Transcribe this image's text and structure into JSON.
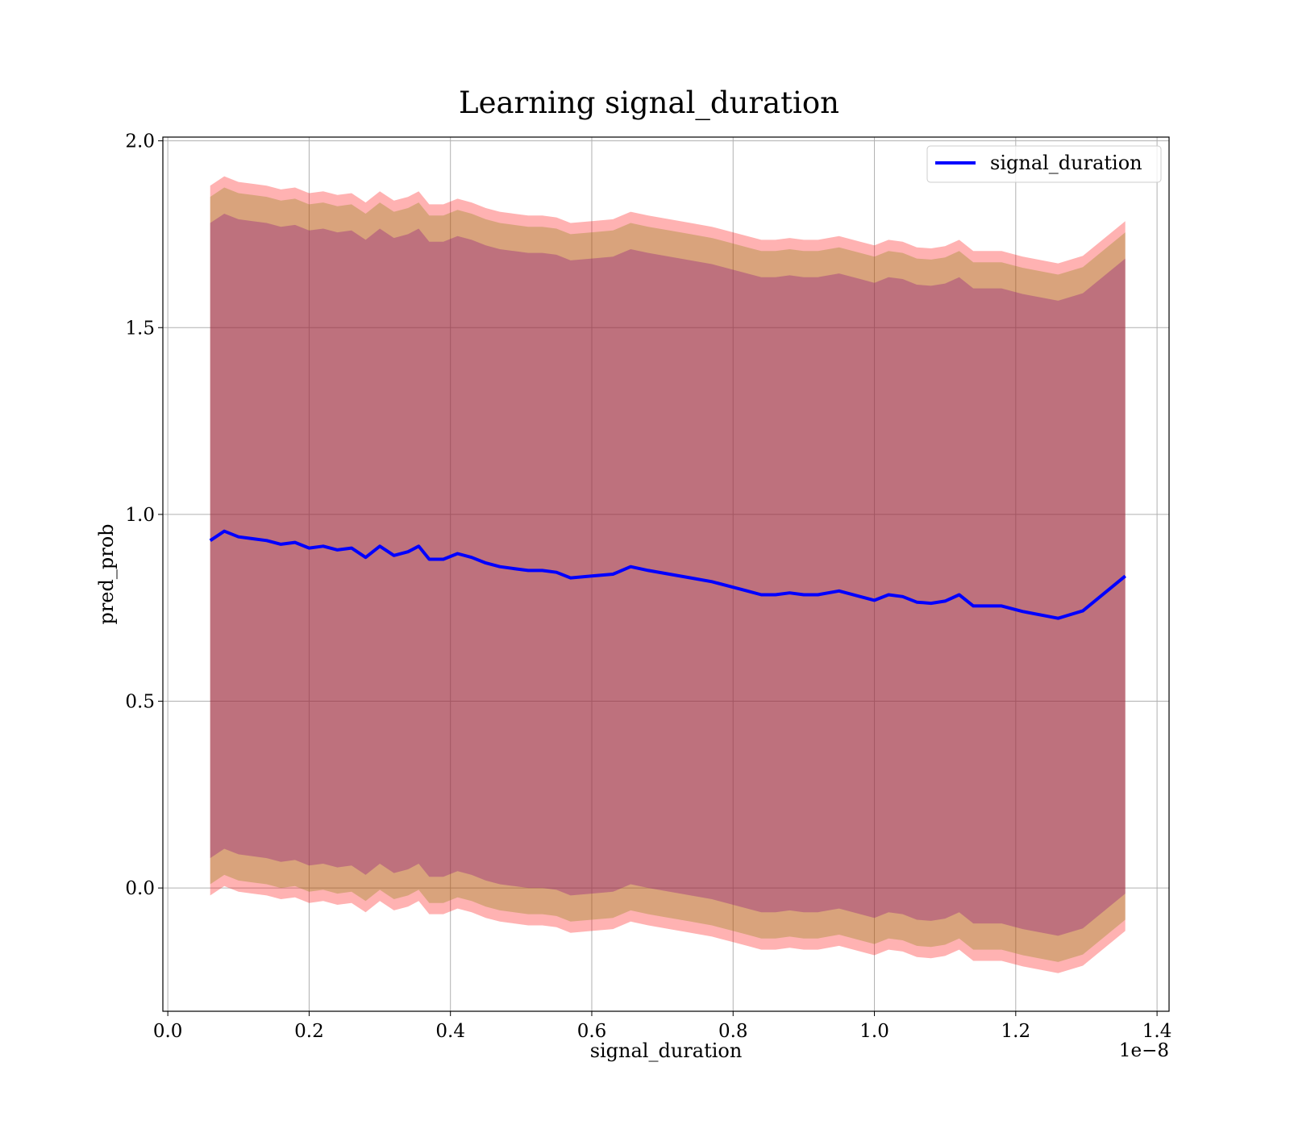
{
  "chart_data": {
    "type": "line",
    "title": "Learning signal_duration",
    "xlabel": "signal_duration",
    "ylabel": "pred_prob",
    "x_offset_text": "1e−8",
    "xlim": [
      -0.007,
      1.417
    ],
    "ylim": [
      -0.33,
      2.01
    ],
    "x_ticks": [
      "0.0",
      "0.2",
      "0.4",
      "0.6",
      "0.8",
      "1.0",
      "1.2",
      "1.4"
    ],
    "x_tick_values": [
      0.0,
      0.2,
      0.4,
      0.6,
      0.8,
      1.0,
      1.2,
      1.4
    ],
    "y_ticks": [
      "0.0",
      "0.5",
      "1.0",
      "1.5",
      "2.0"
    ],
    "y_tick_values": [
      0.0,
      0.5,
      1.0,
      1.5,
      2.0
    ],
    "grid": true,
    "legend_position": "top-right",
    "x": [
      0.06,
      0.08,
      0.1,
      0.12,
      0.14,
      0.16,
      0.18,
      0.2,
      0.22,
      0.24,
      0.26,
      0.28,
      0.3,
      0.32,
      0.34,
      0.355,
      0.37,
      0.39,
      0.41,
      0.43,
      0.45,
      0.47,
      0.49,
      0.51,
      0.53,
      0.55,
      0.57,
      0.6,
      0.63,
      0.655,
      0.68,
      0.71,
      0.74,
      0.77,
      0.8,
      0.82,
      0.84,
      0.86,
      0.88,
      0.9,
      0.92,
      0.95,
      0.98,
      1.0,
      1.02,
      1.04,
      1.06,
      1.08,
      1.1,
      1.12,
      1.14,
      1.18,
      1.21,
      1.26,
      1.295,
      1.355
    ],
    "series": [
      {
        "name": "signal_duration",
        "color": "#0000ff",
        "values": [
          0.93,
          0.955,
          0.94,
          0.935,
          0.93,
          0.92,
          0.925,
          0.91,
          0.915,
          0.905,
          0.91,
          0.885,
          0.915,
          0.89,
          0.9,
          0.915,
          0.88,
          0.88,
          0.895,
          0.885,
          0.87,
          0.86,
          0.855,
          0.85,
          0.85,
          0.845,
          0.83,
          0.835,
          0.84,
          0.86,
          0.85,
          0.84,
          0.83,
          0.82,
          0.805,
          0.795,
          0.785,
          0.785,
          0.79,
          0.785,
          0.785,
          0.795,
          0.78,
          0.77,
          0.785,
          0.78,
          0.765,
          0.762,
          0.768,
          0.785,
          0.755,
          0.755,
          0.74,
          0.722,
          0.742,
          0.835
        ]
      }
    ],
    "bands": [
      {
        "color": "#ff0000",
        "opacity": 0.3,
        "offset_upper": 0.95,
        "offset_lower": 0.95
      },
      {
        "color": "#808000",
        "opacity": 0.3,
        "offset_upper": 0.92,
        "offset_lower": 0.92
      },
      {
        "color": "#800080",
        "opacity": 0.3,
        "offset_upper": 0.85,
        "offset_lower": 0.85
      }
    ]
  }
}
